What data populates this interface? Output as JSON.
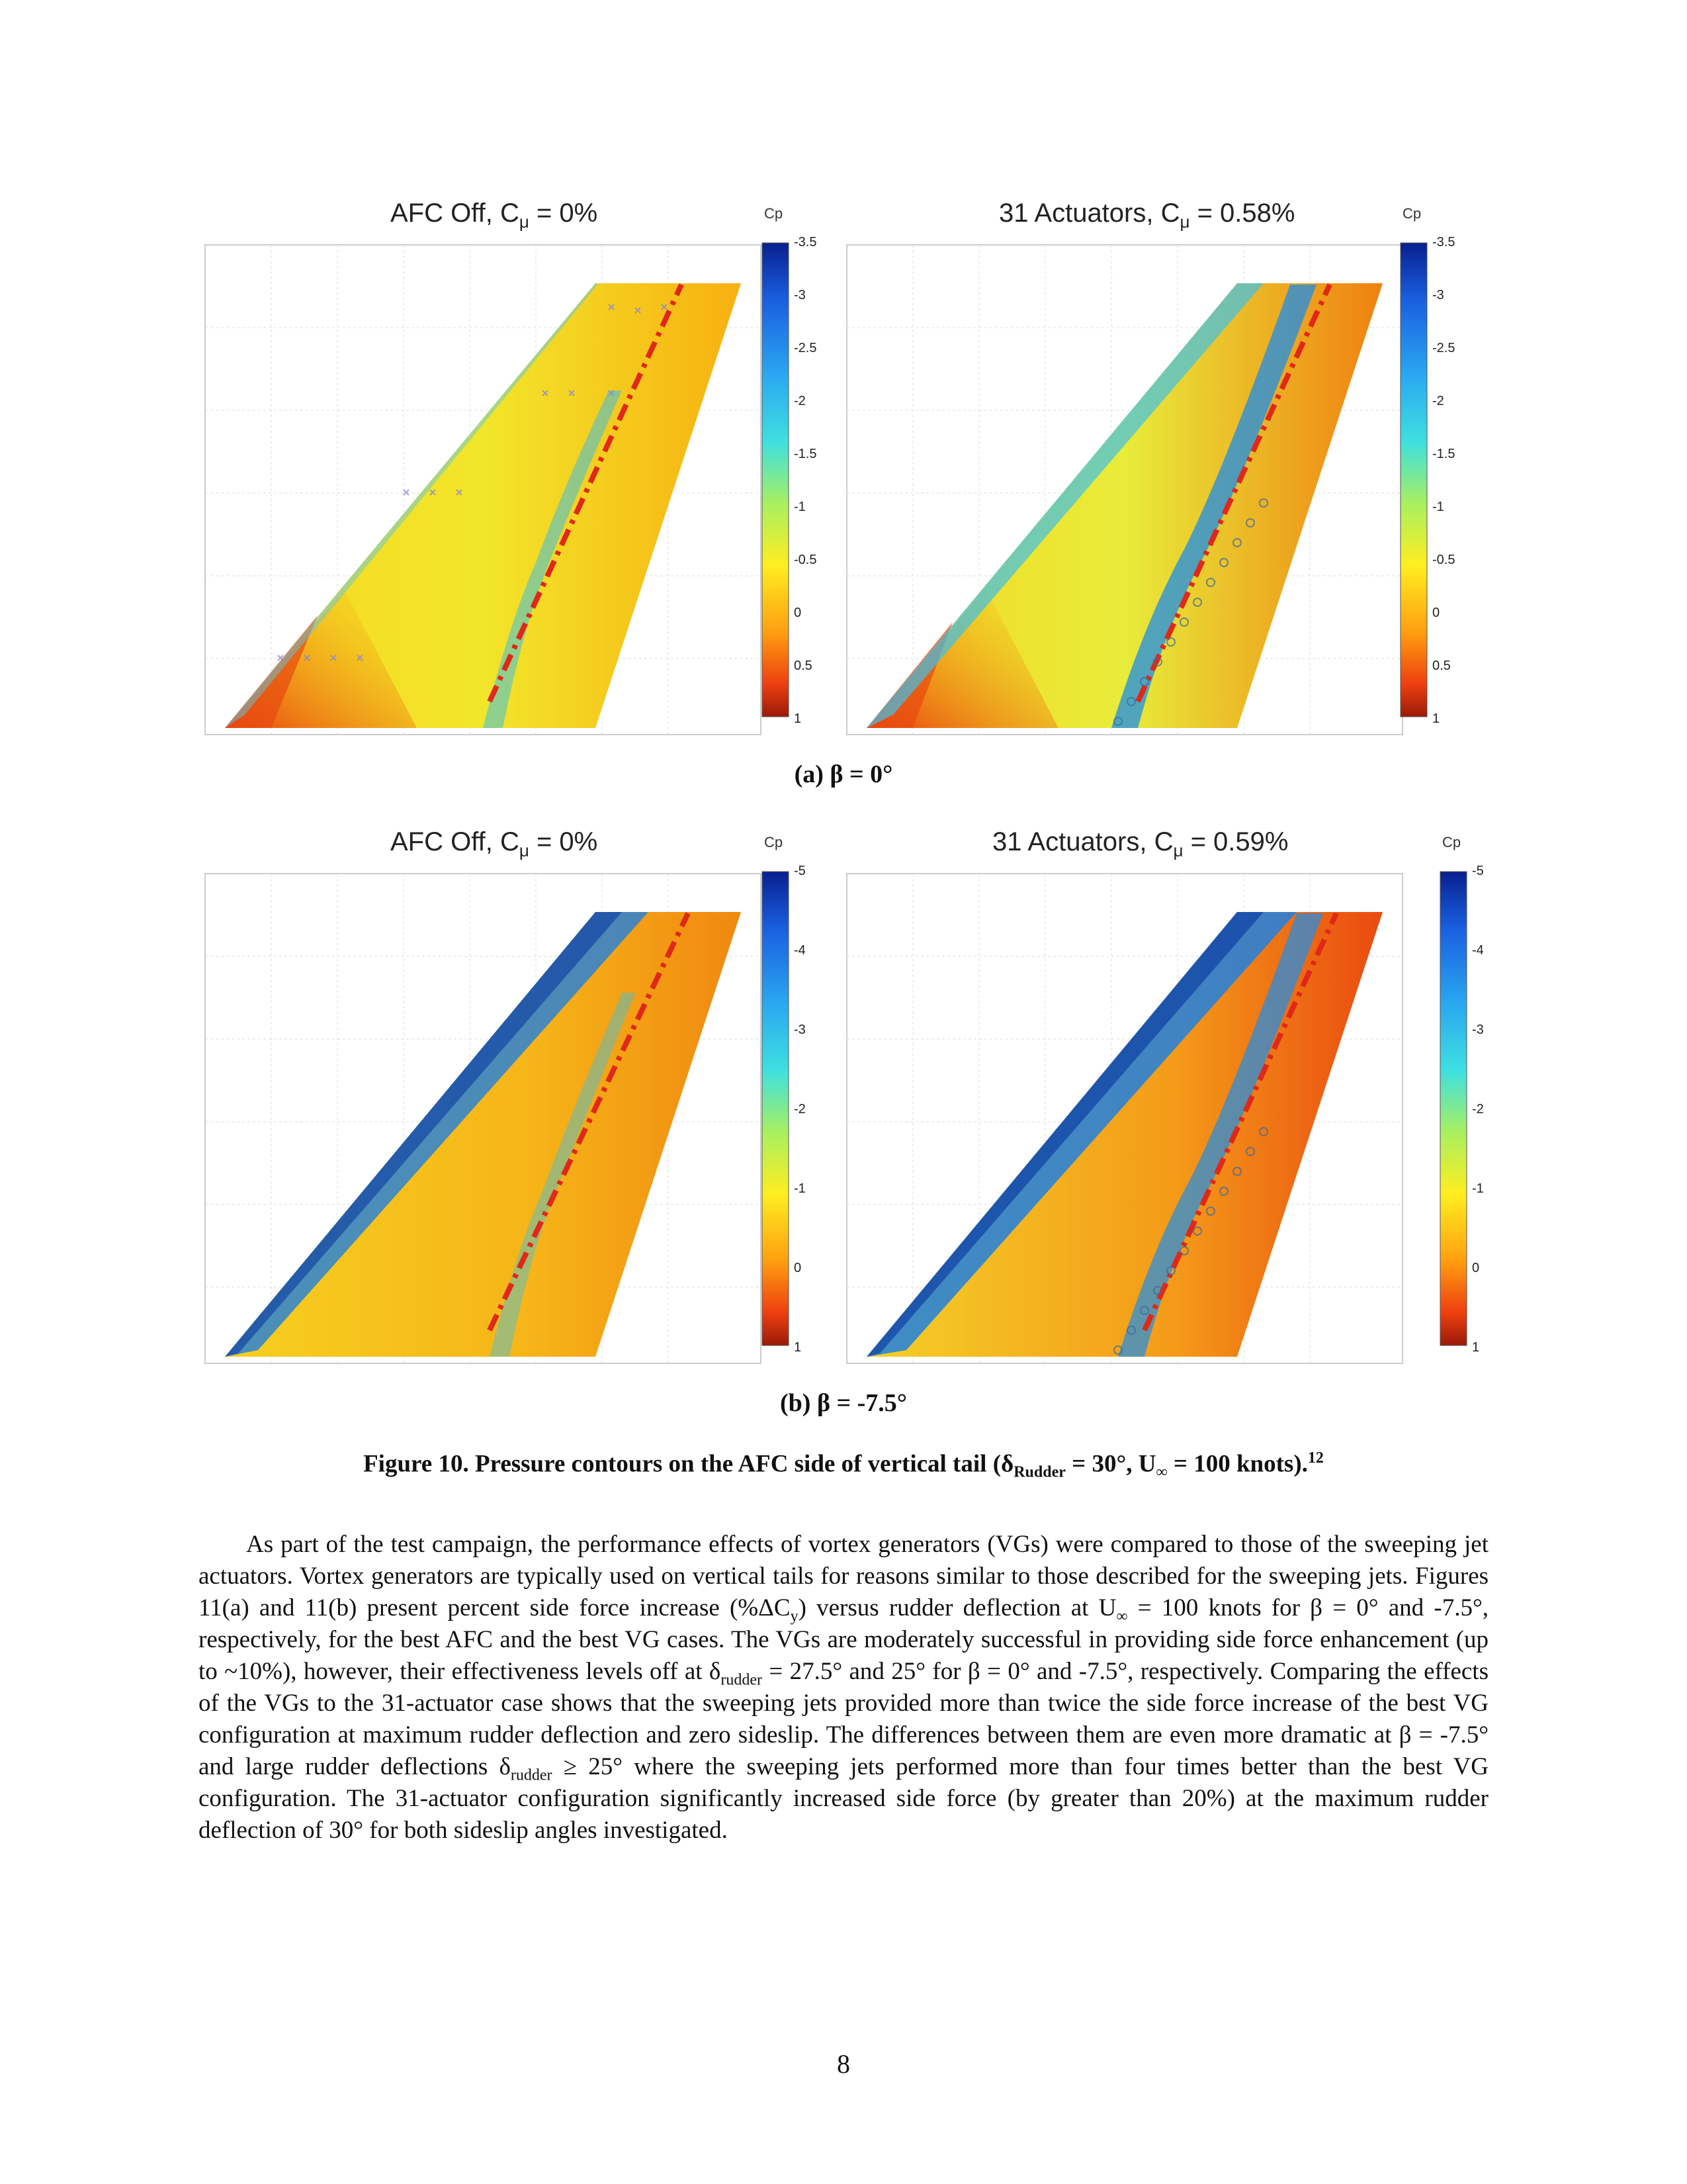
{
  "figure": {
    "panel_a": {
      "left_title": "AFC Off, C",
      "left_title_sub": "μ",
      "left_title_rest": " = 0%",
      "right_title": "31 Actuators, C",
      "right_title_sub": "μ",
      "right_title_rest": " = 0.58%",
      "colorbar_label": "Cp",
      "colorbar_ticks": [
        "-3.5",
        "-3",
        "-2.5",
        "-2",
        "-1.5",
        "-1",
        "-0.5",
        "0",
        "0.5",
        "1"
      ],
      "caption": "(a) β = 0°"
    },
    "panel_b": {
      "left_title": "AFC Off, C",
      "left_title_sub": "μ",
      "left_title_rest": " = 0%",
      "right_title": "31 Actuators, C",
      "right_title_sub": "μ",
      "right_title_rest": " = 0.59%",
      "colorbar_label": "Cp",
      "colorbar_ticks": [
        "-5",
        "-4",
        "-3",
        "-2",
        "-1",
        "0",
        "1"
      ],
      "caption": "(b) β = -7.5°"
    },
    "caption_main": "Figure 10.  Pressure contours on the AFC side of vertical tail (δ",
    "caption_sub": "Rudder",
    "caption_rest": " = 30°, U",
    "caption_sub2": "∞",
    "caption_end": " = 100 knots).",
    "caption_sup": "12"
  },
  "paragraph": {
    "p1": "As part of the test campaign, the performance effects of vortex generators (VGs) were compared to those of the sweeping jet actuators.  Vortex generators are typically used on vertical tails for reasons similar to those described for the sweeping jets.  Figures 11(a) and 11(b) present percent side force increase (%ΔC",
    "p1_sub": "y",
    "p2": ") versus rudder deflection at U",
    "p2_sub": "∞",
    "p3": " = 100 knots for β = 0° and -7.5°, respectively, for the best AFC and the best VG cases.  The VGs are moderately successful in providing side force enhancement (up to ~10%), however, their effectiveness levels off at δ",
    "p3_sub": "rudder",
    "p4": " = 27.5° and 25° for β = 0° and -7.5°, respectively.  Comparing the effects of the VGs to the 31-actuator case shows that the sweeping jets provided more than twice the side force increase of the best VG configuration at maximum rudder deflection and zero sideslip.  The differences between them are even more dramatic at β = -7.5° and large rudder deflections δ",
    "p4_sub": "rudder",
    "p5": " ≥ 25° where the sweeping jets performed more than four times better than the best VG configuration.  The 31-actuator configuration significantly increased side force (by greater than 20%) at the maximum rudder deflection of 30° for both sideslip angles investigated."
  },
  "page_number": "8"
}
